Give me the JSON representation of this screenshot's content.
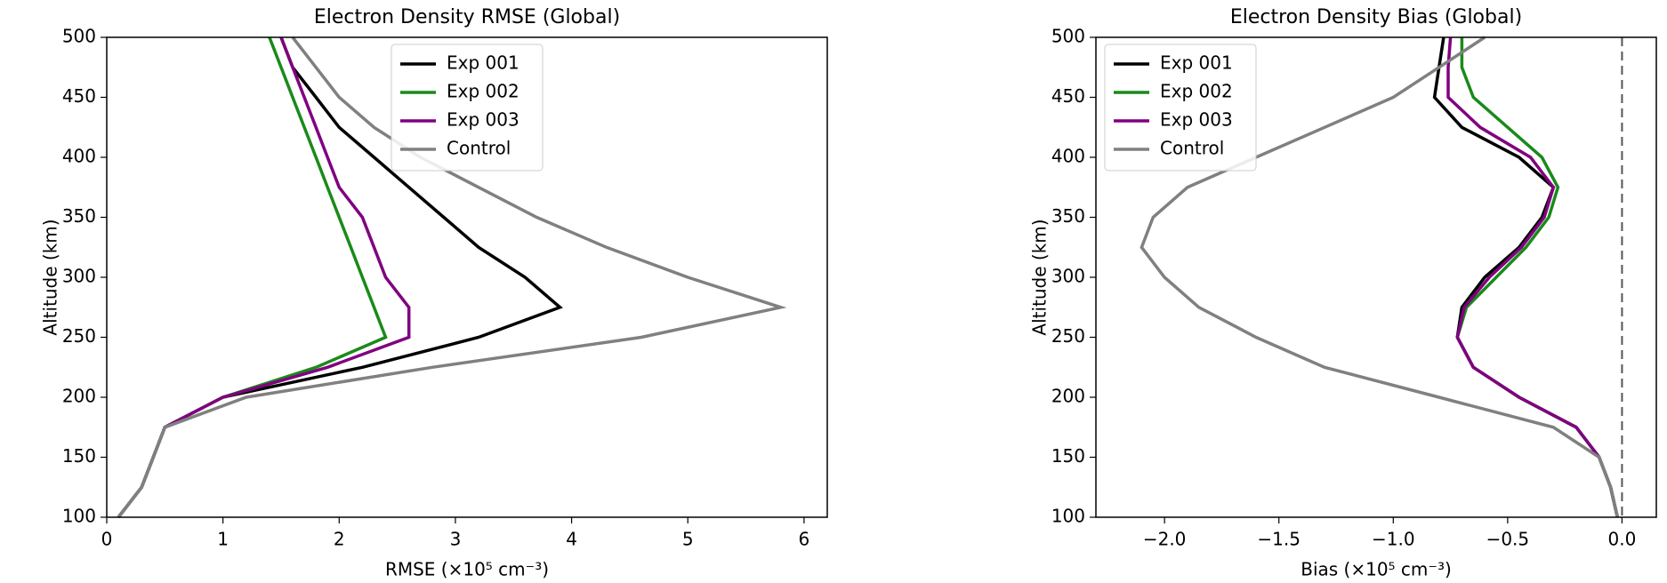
{
  "chart_data": [
    {
      "type": "line",
      "title": "Electron Density RMSE (Global)",
      "xlabel": "RMSE (×10⁵ cm⁻³)",
      "ylabel": "Altitude (km)",
      "y": [
        100,
        125,
        150,
        175,
        200,
        225,
        250,
        275,
        300,
        325,
        350,
        375,
        400,
        425,
        450,
        475,
        500
      ],
      "xlim": [
        0,
        6.2
      ],
      "xticks": [
        0,
        1,
        2,
        3,
        4,
        5,
        6
      ],
      "ylim": [
        100,
        500
      ],
      "yticks": [
        100,
        150,
        200,
        250,
        300,
        350,
        400,
        450,
        500
      ],
      "legend": "upper center",
      "grid": false,
      "series": [
        {
          "name": "Exp 001",
          "color": "#000000",
          "values": [
            0.1,
            0.3,
            0.4,
            0.5,
            1.0,
            2.2,
            3.2,
            3.9,
            3.6,
            3.2,
            2.9,
            2.6,
            2.3,
            2.0,
            1.8,
            1.6,
            1.5
          ]
        },
        {
          "name": "Exp 002",
          "color": "#1a8a1a",
          "values": [
            0.1,
            0.3,
            0.4,
            0.5,
            1.0,
            1.8,
            2.4,
            2.3,
            2.2,
            2.1,
            2.0,
            1.9,
            1.8,
            1.7,
            1.6,
            1.5,
            1.4
          ]
        },
        {
          "name": "Exp 003",
          "color": "#800080",
          "values": [
            0.1,
            0.3,
            0.4,
            0.5,
            1.0,
            1.9,
            2.6,
            2.6,
            2.4,
            2.3,
            2.2,
            2.0,
            1.9,
            1.8,
            1.7,
            1.6,
            1.5
          ]
        },
        {
          "name": "Control",
          "color": "#808080",
          "values": [
            0.1,
            0.3,
            0.4,
            0.5,
            1.2,
            2.8,
            4.6,
            5.8,
            5.0,
            4.3,
            3.7,
            3.2,
            2.7,
            2.3,
            2.0,
            1.8,
            1.6
          ]
        }
      ]
    },
    {
      "type": "line",
      "title": "Electron Density Bias (Global)",
      "xlabel": "Bias (×10⁵ cm⁻³)",
      "ylabel": "Altitude (km)",
      "y": [
        100,
        125,
        150,
        175,
        200,
        225,
        250,
        275,
        300,
        325,
        350,
        375,
        400,
        425,
        450,
        475,
        500
      ],
      "xlim": [
        -2.3,
        0.15
      ],
      "xticks": [
        {
          "value": -2.0,
          "label": "−2.0"
        },
        {
          "value": -1.5,
          "label": "−1.5"
        },
        {
          "value": -1.0,
          "label": "−1.0"
        },
        {
          "value": -0.5,
          "label": "−0.5"
        },
        {
          "value": 0.0,
          "label": "0.0"
        }
      ],
      "ylim": [
        100,
        500
      ],
      "yticks": [
        100,
        150,
        200,
        250,
        300,
        350,
        400,
        450,
        500
      ],
      "legend": "upper left",
      "grid": false,
      "series": [
        {
          "name": "Exp 001",
          "color": "#000000",
          "values": [
            -0.02,
            -0.05,
            -0.1,
            -0.2,
            -0.45,
            -0.65,
            -0.72,
            -0.7,
            -0.6,
            -0.45,
            -0.35,
            -0.3,
            -0.45,
            -0.7,
            -0.82,
            -0.8,
            -0.78
          ]
        },
        {
          "name": "Exp 002",
          "color": "#1a8a1a",
          "values": [
            -0.02,
            -0.05,
            -0.1,
            -0.2,
            -0.45,
            -0.65,
            -0.72,
            -0.68,
            -0.55,
            -0.42,
            -0.32,
            -0.28,
            -0.35,
            -0.5,
            -0.65,
            -0.7,
            -0.7
          ]
        },
        {
          "name": "Exp 003",
          "color": "#800080",
          "values": [
            -0.02,
            -0.05,
            -0.1,
            -0.2,
            -0.45,
            -0.65,
            -0.72,
            -0.69,
            -0.58,
            -0.44,
            -0.34,
            -0.3,
            -0.4,
            -0.62,
            -0.76,
            -0.76,
            -0.75
          ]
        },
        {
          "name": "Control",
          "color": "#808080",
          "values": [
            -0.02,
            -0.05,
            -0.1,
            -0.3,
            -0.8,
            -1.3,
            -1.6,
            -1.85,
            -2.0,
            -2.1,
            -2.05,
            -1.9,
            -1.6,
            -1.3,
            -1.0,
            -0.8,
            -0.6
          ]
        }
      ]
    }
  ]
}
